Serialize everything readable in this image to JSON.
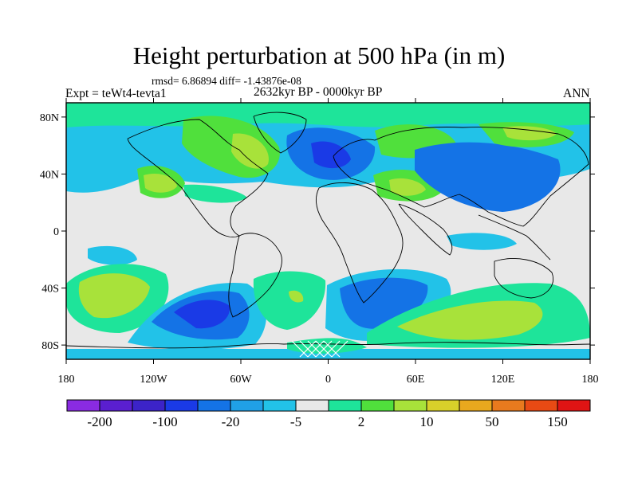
{
  "title": "Height perturbation at 500 hPa (in m)",
  "stats_text": "rmsd= 6.86894 diff= -1.43876e-08",
  "experiment_label": "Expt = teWt4-tevta1",
  "period_label": "2632kyr BP - 0000kyr BP",
  "season_label": "ANN",
  "lat_ticks": [
    {
      "value": 80,
      "label": "80N"
    },
    {
      "value": 40,
      "label": "40N"
    },
    {
      "value": 0,
      "label": "0"
    },
    {
      "value": -40,
      "label": "40S"
    },
    {
      "value": -80,
      "label": "80S"
    }
  ],
  "lon_ticks": [
    {
      "value": -180,
      "label": "180"
    },
    {
      "value": -120,
      "label": "120W"
    },
    {
      "value": -60,
      "label": "60W"
    },
    {
      "value": 0,
      "label": "0"
    },
    {
      "value": 60,
      "label": "60E"
    },
    {
      "value": 120,
      "label": "120E"
    },
    {
      "value": 180,
      "label": "180"
    }
  ],
  "colorbar": {
    "colors": [
      "#8a2be2",
      "#5a1fd0",
      "#3c23c8",
      "#1a3ae6",
      "#1473e6",
      "#20a0e6",
      "#22c2e8",
      "#e8e8e8",
      "#1ee49a",
      "#50e03c",
      "#a8e23a",
      "#d8d02a",
      "#e8a81e",
      "#e87a1e",
      "#e84a14",
      "#e01414"
    ],
    "labels": [
      "-200",
      "-100",
      "-20",
      "-5",
      "2",
      "10",
      "50",
      "150"
    ]
  },
  "map_colors": {
    "neutral": "#e8e8e8",
    "neg_light": "#22c2e8",
    "neg_mid": "#1473e6",
    "neg_dark": "#1a3ae6",
    "pos_light": "#1ee49a",
    "pos_mid": "#50e03c",
    "pos_strong": "#a8e23a",
    "pos_peak": "#d8d02a"
  }
}
